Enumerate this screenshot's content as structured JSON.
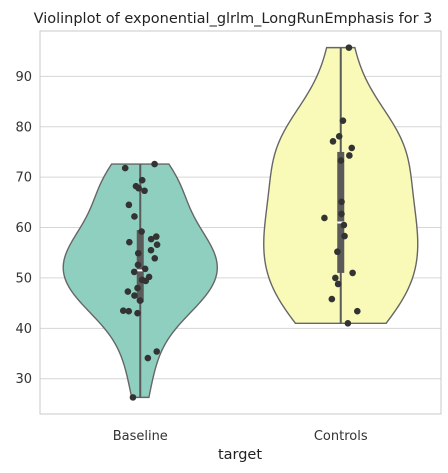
{
  "chart_data": {
    "type": "violin",
    "title": "Violinplot of exponential_glrlm_LongRunEmphasis for 3",
    "xlabel": "target",
    "ylabel": "",
    "categories": [
      "Baseline",
      "Controls"
    ],
    "ylim": [
      23,
      99
    ],
    "yticks": [
      30,
      40,
      50,
      60,
      70,
      80,
      90
    ],
    "grid": true,
    "colors": {
      "Baseline": "#8fcfc0",
      "Controls": "#f9f9b8",
      "outline": "#666666",
      "points": "#333333",
      "grid": "#d6d6d6",
      "frame": "#c8c8c8"
    },
    "violins": [
      {
        "category": "Baseline",
        "min": 26.3,
        "q1": 45.2,
        "median": 51.5,
        "q3": 59.5,
        "max": 72.6,
        "points": [
          72.6,
          71.8,
          69.4,
          68.2,
          67.8,
          67.3,
          64.5,
          62.2,
          59.2,
          58.2,
          57.7,
          57.1,
          56.6,
          55.5,
          54.9,
          53.9,
          52.6,
          51.8,
          51.2,
          50.2,
          49.6,
          49.4,
          48.0,
          47.3,
          46.5,
          45.5,
          43.5,
          43.4,
          43.0,
          35.4,
          34.1,
          26.3
        ]
      },
      {
        "category": "Controls",
        "min": 41.0,
        "q1": 51.0,
        "median": 61.0,
        "q3": 75.0,
        "max": 95.7,
        "points": [
          95.7,
          81.2,
          78.1,
          77.1,
          75.8,
          74.3,
          73.3,
          65.1,
          62.7,
          61.9,
          60.5,
          58.3,
          55.2,
          51.0,
          50.0,
          48.8,
          45.8,
          43.4,
          41.0
        ]
      }
    ]
  }
}
